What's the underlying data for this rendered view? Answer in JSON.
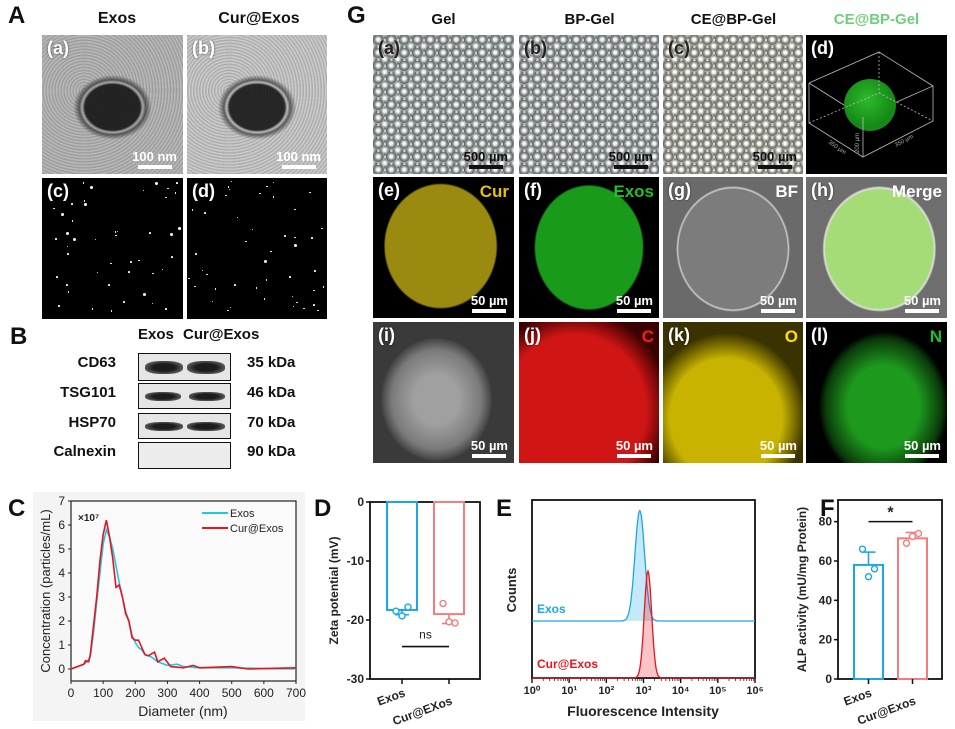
{
  "panel_A": {
    "label": "A",
    "col_headers": [
      "Exos",
      "Cur@Exos"
    ],
    "images": [
      {
        "tag": "(a)",
        "scale": "100 nm"
      },
      {
        "tag": "(b)",
        "scale": "100 nm"
      },
      {
        "tag": "(c)"
      },
      {
        "tag": "(d)"
      }
    ]
  },
  "panel_B": {
    "label": "B",
    "col_headers": [
      "Exos",
      "Cur@Exos"
    ],
    "rows": [
      {
        "protein": "CD63",
        "mw": "35 kDa"
      },
      {
        "protein": "TSG101",
        "mw": "46 kDa"
      },
      {
        "protein": "HSP70",
        "mw": "70 kDa"
      },
      {
        "protein": "Calnexin",
        "mw": "90 kDa"
      }
    ]
  },
  "panel_G": {
    "label": "G",
    "col_headers": [
      "Gel",
      "BP-Gel",
      "CE@BP-Gel",
      "CE@BP-Gel"
    ],
    "header_colors": [
      "#111111",
      "#111111",
      "#111111",
      "#6ccf7a"
    ],
    "images": [
      {
        "tag": "(a)",
        "scale": "500 µm"
      },
      {
        "tag": "(b)",
        "scale": "500 µm"
      },
      {
        "tag": "(c)",
        "scale": "500 µm"
      },
      {
        "tag": "(d)",
        "axes": [
          "350 µm",
          "200 µm",
          "350 µm"
        ]
      },
      {
        "tag": "(e)",
        "channel": "Cur",
        "channel_color": "#e6c200",
        "scale": "50 µm"
      },
      {
        "tag": "(f)",
        "channel": "Exos",
        "channel_color": "#1fc21f",
        "scale": "50 µm"
      },
      {
        "tag": "(g)",
        "channel": "BF",
        "channel_color": "#ffffff",
        "scale": "50 µm"
      },
      {
        "tag": "(h)",
        "channel": "Merge",
        "channel_color": "#ffffff",
        "scale": "50 µm"
      },
      {
        "tag": "(i)",
        "scale": "50 µm"
      },
      {
        "tag": "(j)",
        "channel": "C",
        "channel_color": "#ff1a1a",
        "scale": "50 µm"
      },
      {
        "tag": "(k)",
        "channel": "O",
        "channel_color": "#ffe000",
        "scale": "50 µm"
      },
      {
        "tag": "(l)",
        "channel": "N",
        "channel_color": "#1fc21f",
        "scale": "50 µm"
      }
    ]
  },
  "colors": {
    "exos": "#1aa7e8",
    "cur_exos_line": "#e8141c",
    "cur_exos_bar": "#f47c7c"
  },
  "chart_data": [
    {
      "id": "C",
      "panel_label": "C",
      "type": "line",
      "title": "",
      "xlabel": "Diameter (nm)",
      "ylabel": "Concentration (particles/mL)",
      "multiplier": "×10⁷",
      "xlim": [
        0,
        700
      ],
      "ylim": [
        -0.5,
        7
      ],
      "xticks": [
        0,
        100,
        200,
        300,
        400,
        500,
        600,
        700
      ],
      "yticks": [
        0,
        1,
        2,
        3,
        4,
        5,
        6,
        7
      ],
      "legend": "top-right",
      "series": [
        {
          "name": "Exos",
          "color": "#1ec8e8",
          "points": [
            [
              0,
              0
            ],
            [
              20,
              0.1
            ],
            [
              40,
              0.2
            ],
            [
              50,
              0.3
            ],
            [
              60,
              0.5
            ],
            [
              70,
              1.5
            ],
            [
              80,
              2.8
            ],
            [
              90,
              4.0
            ],
            [
              100,
              5.2
            ],
            [
              110,
              5.8
            ],
            [
              120,
              5.5
            ],
            [
              130,
              5.0
            ],
            [
              140,
              4.3
            ],
            [
              150,
              3.6
            ],
            [
              160,
              3.0
            ],
            [
              170,
              2.4
            ],
            [
              180,
              2.0
            ],
            [
              190,
              1.4
            ],
            [
              200,
              1.1
            ],
            [
              210,
              0.9
            ],
            [
              220,
              0.8
            ],
            [
              230,
              0.6
            ],
            [
              250,
              0.5
            ],
            [
              270,
              0.3
            ],
            [
              300,
              0.15
            ],
            [
              330,
              0.2
            ],
            [
              350,
              0.1
            ],
            [
              400,
              0.05
            ],
            [
              500,
              0.05
            ],
            [
              600,
              0.02
            ],
            [
              700,
              0
            ]
          ]
        },
        {
          "name": "Cur@Exos",
          "color": "#e8141c",
          "points": [
            [
              0,
              0
            ],
            [
              20,
              0.1
            ],
            [
              40,
              0.2
            ],
            [
              45,
              0.35
            ],
            [
              55,
              0.3
            ],
            [
              60,
              0.6
            ],
            [
              70,
              1.8
            ],
            [
              80,
              3.0
            ],
            [
              90,
              4.5
            ],
            [
              100,
              5.6
            ],
            [
              110,
              6.2
            ],
            [
              120,
              5.5
            ],
            [
              130,
              4.6
            ],
            [
              140,
              3.4
            ],
            [
              150,
              3.5
            ],
            [
              160,
              3.0
            ],
            [
              170,
              2.3
            ],
            [
              180,
              2.0
            ],
            [
              190,
              1.3
            ],
            [
              200,
              1.2
            ],
            [
              210,
              1.2
            ],
            [
              220,
              0.9
            ],
            [
              230,
              0.6
            ],
            [
              240,
              0.55
            ],
            [
              260,
              0.7
            ],
            [
              270,
              0.3
            ],
            [
              290,
              0.45
            ],
            [
              310,
              0.1
            ],
            [
              350,
              0.05
            ],
            [
              380,
              0.15
            ],
            [
              400,
              0.05
            ],
            [
              500,
              0.1
            ],
            [
              550,
              0
            ],
            [
              700,
              0.05
            ]
          ]
        }
      ]
    },
    {
      "id": "D",
      "panel_label": "D",
      "type": "bar",
      "ylabel": "Zeta potential (mV)",
      "xlabel": "",
      "categories": [
        "Exos",
        "Cur@EXos"
      ],
      "ylim": [
        -30,
        0
      ],
      "yticks": [
        0,
        -10,
        -20,
        -30
      ],
      "values": [
        -18.3,
        -19.0
      ],
      "errors": [
        0.8,
        1.6
      ],
      "points": [
        [
          -18.5,
          -17.8,
          -19.3
        ],
        [
          -17.2,
          -20.5,
          -20.3
        ]
      ],
      "colors": [
        "#1aa7e8",
        "#f47c7c"
      ],
      "significance": {
        "label": "ns",
        "between": [
          0,
          1
        ],
        "y": -24.5
      }
    },
    {
      "id": "E",
      "panel_label": "E",
      "type": "area",
      "xlabel": "Fluorescence Intensity",
      "ylabel": "Counts",
      "xscale": "log",
      "xlim": [
        0,
        6
      ],
      "xtick_labels": [
        "10⁰",
        "10¹",
        "10²",
        "10³",
        "10⁴",
        "10⁵",
        "10⁶"
      ],
      "series": [
        {
          "name": "Exos",
          "color": "#1aa7e8",
          "peak_log10": 2.9,
          "sigma_log10": 0.13,
          "offset": 0.32,
          "height": 0.62
        },
        {
          "name": "Cur@Exos",
          "color": "#e8141c",
          "peak_log10": 3.12,
          "sigma_log10": 0.1,
          "offset": 0.0,
          "height": 0.6
        }
      ]
    },
    {
      "id": "F",
      "panel_label": "F",
      "type": "bar",
      "ylabel": "ALP activity (mU/mg Protein)",
      "xlabel": "",
      "categories": [
        "Exos",
        "Cur@Exos"
      ],
      "ylim": [
        0,
        91
      ],
      "yticks": [
        0,
        20,
        40,
        60,
        80
      ],
      "values": [
        58,
        71.5
      ],
      "errors": [
        6.5,
        3
      ],
      "points": [
        [
          66,
          56,
          52
        ],
        [
          69,
          74,
          72.5
        ]
      ],
      "colors": [
        "#1aa7e8",
        "#f47c7c"
      ],
      "significance": {
        "label": "*",
        "between": [
          0,
          1
        ],
        "y": 80
      }
    }
  ]
}
